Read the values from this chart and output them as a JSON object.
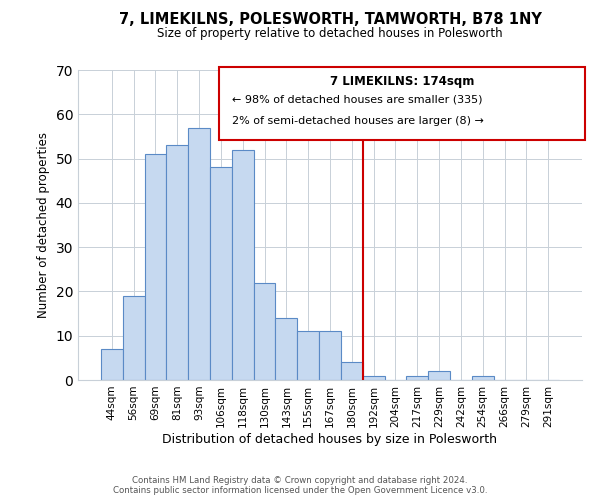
{
  "title": "7, LIMEKILNS, POLESWORTH, TAMWORTH, B78 1NY",
  "subtitle": "Size of property relative to detached houses in Polesworth",
  "xlabel": "Distribution of detached houses by size in Polesworth",
  "ylabel": "Number of detached properties",
  "bar_labels": [
    "44sqm",
    "56sqm",
    "69sqm",
    "81sqm",
    "93sqm",
    "106sqm",
    "118sqm",
    "130sqm",
    "143sqm",
    "155sqm",
    "167sqm",
    "180sqm",
    "192sqm",
    "204sqm",
    "217sqm",
    "229sqm",
    "242sqm",
    "254sqm",
    "266sqm",
    "279sqm",
    "291sqm"
  ],
  "bar_values": [
    7,
    19,
    51,
    53,
    57,
    48,
    52,
    22,
    14,
    11,
    11,
    4,
    1,
    0,
    1,
    2,
    0,
    1,
    0,
    0,
    0
  ],
  "bar_color": "#c6d9f0",
  "bar_edge_color": "#5a8ac6",
  "vline_x": 11.5,
  "vline_color": "#cc0000",
  "ylim": [
    0,
    70
  ],
  "yticks": [
    0,
    10,
    20,
    30,
    40,
    50,
    60,
    70
  ],
  "annotation_title": "7 LIMEKILNS: 174sqm",
  "annotation_line1": "← 98% of detached houses are smaller (335)",
  "annotation_line2": "2% of semi-detached houses are larger (8) →",
  "footer_line1": "Contains HM Land Registry data © Crown copyright and database right 2024.",
  "footer_line2": "Contains public sector information licensed under the Open Government Licence v3.0.",
  "background_color": "#ffffff",
  "grid_color": "#c8d0d8"
}
